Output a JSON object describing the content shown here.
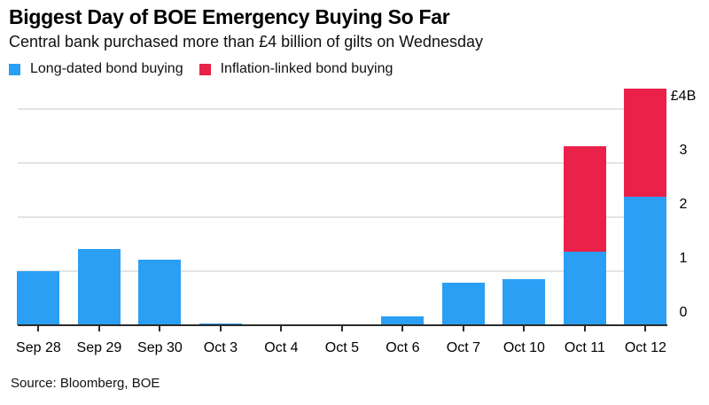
{
  "header": {
    "title": "Biggest Day of BOE Emergency Buying So Far",
    "subtitle": "Central bank purchased more than £4 billion of gilts on Wednesday"
  },
  "footer": {
    "source": "Source: Bloomberg, BOE"
  },
  "colors": {
    "long_dated_blue": "#2A9FF3",
    "inflation_linked_red": "#EA2148",
    "gridline": "#e4e4e4",
    "axis": "#2b2b2b",
    "text": "#000000",
    "background": "#ffffff"
  },
  "chart_data": {
    "type": "bar",
    "stacked": true,
    "title": "Biggest Day of BOE Emergency Buying So Far",
    "subtitle": "Central bank purchased more than £4 billion of gilts on Wednesday",
    "unit": "billions of GBP",
    "categories": [
      "Sep 28",
      "Sep 29",
      "Sep 30",
      "Oct 3",
      "Oct 4",
      "Oct 5",
      "Oct 6",
      "Oct 7",
      "Oct 10",
      "Oct 11",
      "Oct 12"
    ],
    "series": [
      {
        "name": "Long-dated bond buying",
        "color": "#2A9FF3",
        "values": [
          1.0,
          1.4,
          1.2,
          0.03,
          0,
          0,
          0.16,
          0.78,
          0.85,
          1.36,
          2.37
        ]
      },
      {
        "name": "Inflation-linked bond buying",
        "color": "#EA2148",
        "values": [
          0,
          0,
          0,
          0,
          0,
          0,
          0,
          0,
          0,
          1.95,
          2.0
        ]
      }
    ],
    "y_axis": {
      "side": "right",
      "range": [
        0,
        4.4
      ],
      "ticks": [
        {
          "value": 4,
          "label": "£4B"
        },
        {
          "value": 3,
          "label": "3"
        },
        {
          "value": 2,
          "label": "2"
        },
        {
          "value": 1,
          "label": "1"
        },
        {
          "value": 0,
          "label": "0"
        }
      ]
    },
    "grid": "horizontal",
    "legend_position": "top-left"
  }
}
